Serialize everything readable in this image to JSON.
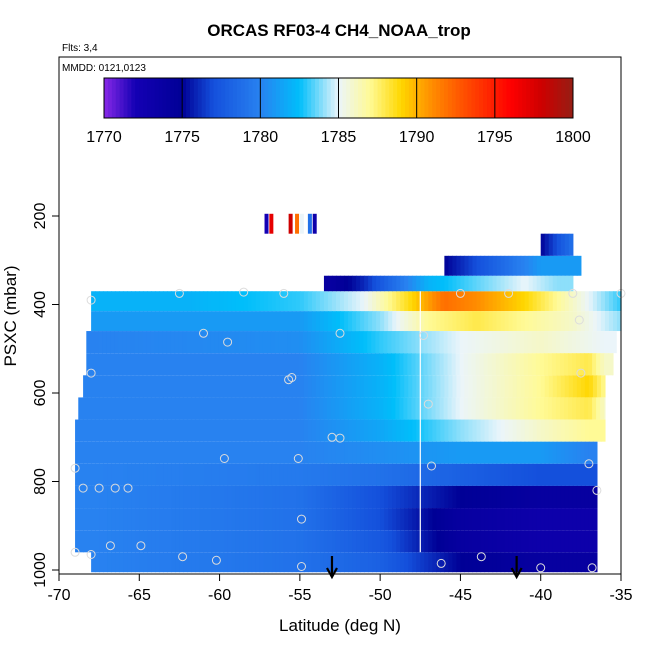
{
  "chart_data": {
    "type": "heatmap",
    "title": "ORCAS RF03-4 CH4_NOAA_trop",
    "subtitle_flights": "Flts: 3,4",
    "subtitle_dates": "MMDD: 0121,0123",
    "xlabel": "Latitude (deg N)",
    "ylabel": "PSXC (mbar)",
    "xlim": [
      -70,
      -35
    ],
    "ylim": [
      1000,
      0
    ],
    "x_ticks": [
      "-70",
      "-65",
      "-60",
      "-55",
      "-50",
      "-45",
      "-40",
      "-35"
    ],
    "y_ticks": [
      "200",
      "400",
      "600",
      "800",
      "1000"
    ],
    "colorbar": {
      "range": [
        1770,
        1800
      ],
      "tick_labels": [
        "1770",
        "1775",
        "1780",
        "1785",
        "1790",
        "1795",
        "1800"
      ]
    },
    "vertical_line_lat": -47.5,
    "arrows_lat": [
      -53,
      -41.5
    ],
    "levels": [
      {
        "p": [
          370,
          415
        ],
        "lat": [
          -68,
          -35
        ],
        "values": [
          [
            -68,
            1782
          ],
          [
            -62,
            1782
          ],
          [
            -55,
            1783
          ],
          [
            -51,
            1785
          ],
          [
            -48,
            1789
          ],
          [
            -46,
            1792
          ],
          [
            -44,
            1791
          ],
          [
            -41,
            1789
          ],
          [
            -38,
            1786
          ],
          [
            -35,
            1783
          ]
        ]
      },
      {
        "p": [
          415,
          460
        ],
        "lat": [
          -68,
          -35
        ],
        "values": [
          [
            -68,
            1781
          ],
          [
            -55,
            1781
          ],
          [
            -50,
            1784
          ],
          [
            -47,
            1787
          ],
          [
            -44,
            1788
          ],
          [
            -38,
            1786
          ],
          [
            -35,
            1784
          ]
        ]
      },
      {
        "p": [
          460,
          510
        ],
        "lat": [
          -68.3,
          -35.3
        ],
        "values": [
          [
            -68,
            1780
          ],
          [
            -55,
            1780.5
          ],
          [
            -50,
            1783
          ],
          [
            -45,
            1785
          ],
          [
            -40,
            1786
          ],
          [
            -36,
            1785
          ]
        ]
      },
      {
        "p": [
          510,
          560
        ],
        "lat": [
          -68.3,
          -35.5
        ],
        "values": [
          [
            -68,
            1780
          ],
          [
            -55,
            1780
          ],
          [
            -50,
            1782
          ],
          [
            -45,
            1785
          ],
          [
            -40,
            1787
          ],
          [
            -37,
            1788
          ],
          [
            -36,
            1786
          ]
        ]
      },
      {
        "p": [
          560,
          610
        ],
        "lat": [
          -68.5,
          -36
        ],
        "values": [
          [
            -68,
            1780
          ],
          [
            -55,
            1780
          ],
          [
            -50,
            1782
          ],
          [
            -45,
            1785
          ],
          [
            -40,
            1787
          ],
          [
            -37,
            1789
          ],
          [
            -36,
            1787
          ]
        ]
      },
      {
        "p": [
          610,
          660
        ],
        "lat": [
          -68.8,
          -36
        ],
        "values": [
          [
            -68,
            1780
          ],
          [
            -55,
            1780
          ],
          [
            -50,
            1782
          ],
          [
            -45,
            1785
          ],
          [
            -40,
            1787
          ],
          [
            -37,
            1788
          ],
          [
            -36,
            1786
          ]
        ]
      },
      {
        "p": [
          660,
          710
        ],
        "lat": [
          -69,
          -36
        ],
        "values": [
          [
            -68,
            1780
          ],
          [
            -55,
            1780
          ],
          [
            -50,
            1781.5
          ],
          [
            -45,
            1784
          ],
          [
            -40,
            1786
          ],
          [
            -37,
            1787
          ]
        ]
      },
      {
        "p": [
          710,
          760
        ],
        "lat": [
          -69,
          -36.5
        ],
        "values": [
          [
            -68,
            1780
          ],
          [
            -55,
            1780
          ],
          [
            -50,
            1780.5
          ],
          [
            -45,
            1781
          ],
          [
            -40,
            1781
          ],
          [
            -37,
            1780
          ]
        ]
      },
      {
        "p": [
          760,
          810
        ],
        "lat": [
          -69,
          -36.5
        ],
        "values": [
          [
            -68,
            1780
          ],
          [
            -55,
            1779.5
          ],
          [
            -50,
            1779
          ],
          [
            -45,
            1778
          ],
          [
            -40,
            1777
          ],
          [
            -37,
            1777
          ]
        ]
      },
      {
        "p": [
          810,
          860
        ],
        "lat": [
          -69,
          -36.5
        ],
        "values": [
          [
            -68,
            1780
          ],
          [
            -55,
            1779
          ],
          [
            -50,
            1777
          ],
          [
            -45,
            1775
          ],
          [
            -40,
            1774
          ],
          [
            -37,
            1774
          ]
        ]
      },
      {
        "p": [
          860,
          910
        ],
        "lat": [
          -69,
          -36.5
        ],
        "values": [
          [
            -68,
            1780
          ],
          [
            -55,
            1779
          ],
          [
            -50,
            1777
          ],
          [
            -45,
            1774
          ],
          [
            -40,
            1773
          ],
          [
            -37,
            1773
          ]
        ]
      },
      {
        "p": [
          910,
          960
        ],
        "lat": [
          -69,
          -36.5
        ],
        "values": [
          [
            -68,
            1780
          ],
          [
            -55,
            1779
          ],
          [
            -50,
            1777.5
          ],
          [
            -45,
            1774
          ],
          [
            -40,
            1773
          ],
          [
            -37,
            1773
          ]
        ]
      },
      {
        "p": [
          960,
          1005
        ],
        "lat": [
          -68,
          -36.5
        ],
        "values": [
          [
            -68,
            1780
          ],
          [
            -55,
            1779
          ],
          [
            -50,
            1778
          ],
          [
            -45,
            1775
          ],
          [
            -40,
            1774
          ],
          [
            -37,
            1774
          ]
        ]
      },
      {
        "p": [
          335,
          370
        ],
        "lat": [
          -53.5,
          -38
        ],
        "values": [
          [
            -53,
            1774
          ],
          [
            -51,
            1776
          ],
          [
            -49,
            1779
          ],
          [
            -47,
            1782
          ],
          [
            -45,
            1783
          ],
          [
            -43,
            1784
          ],
          [
            -41,
            1785
          ],
          [
            -39,
            1784
          ]
        ]
      },
      {
        "p": [
          290,
          335
        ],
        "lat": [
          -46,
          -37.5
        ],
        "values": [
          [
            -46,
            1775
          ],
          [
            -44,
            1777
          ],
          [
            -42,
            1779
          ],
          [
            -40,
            1781
          ],
          [
            -38,
            1781
          ]
        ]
      },
      {
        "p": [
          240,
          290
        ],
        "lat": [
          -40,
          -38
        ],
        "values": [
          [
            -40,
            1775
          ],
          [
            -39,
            1777
          ],
          [
            -38,
            1779
          ]
        ]
      }
    ],
    "sparse_strip": {
      "p": [
        195,
        240
      ],
      "cells": [
        [
          -57.2,
          1772
        ],
        [
          -56.9,
          1797
        ],
        [
          -55.7,
          1798
        ],
        [
          -55.3,
          1792
        ],
        [
          -55.0,
          1785
        ],
        [
          -54.5,
          1779
        ],
        [
          -54.2,
          1773
        ]
      ]
    },
    "circles": [
      [
        -68,
        390
      ],
      [
        -62.5,
        375
      ],
      [
        -58.5,
        372
      ],
      [
        -56,
        375
      ],
      [
        -61,
        465
      ],
      [
        -59.5,
        485
      ],
      [
        -52.5,
        465
      ],
      [
        -45,
        375
      ],
      [
        -42,
        375
      ],
      [
        -38,
        375
      ],
      [
        -35,
        375
      ],
      [
        -68,
        555
      ],
      [
        -55.7,
        570
      ],
      [
        -55.5,
        565
      ],
      [
        -47.3,
        470
      ],
      [
        -47,
        625
      ],
      [
        -37.5,
        555
      ],
      [
        -37.6,
        435
      ],
      [
        -53,
        700
      ],
      [
        -52.5,
        702
      ],
      [
        -59.7,
        748
      ],
      [
        -55.1,
        748
      ],
      [
        -46.8,
        765
      ],
      [
        -37,
        760
      ],
      [
        -69,
        770
      ],
      [
        -68.5,
        815
      ],
      [
        -67.5,
        815
      ],
      [
        -66.5,
        815
      ],
      [
        -65.7,
        815
      ],
      [
        -36.5,
        820
      ],
      [
        -54.9,
        885
      ],
      [
        -66.8,
        945
      ],
      [
        -64.9,
        945
      ],
      [
        -62.3,
        970
      ],
      [
        -60.2,
        978
      ],
      [
        -54.9,
        992
      ],
      [
        -46.2,
        985
      ],
      [
        -43.7,
        970
      ],
      [
        -40,
        995
      ],
      [
        -36.8,
        995
      ],
      [
        -69,
        960
      ],
      [
        -68,
        965
      ]
    ]
  }
}
